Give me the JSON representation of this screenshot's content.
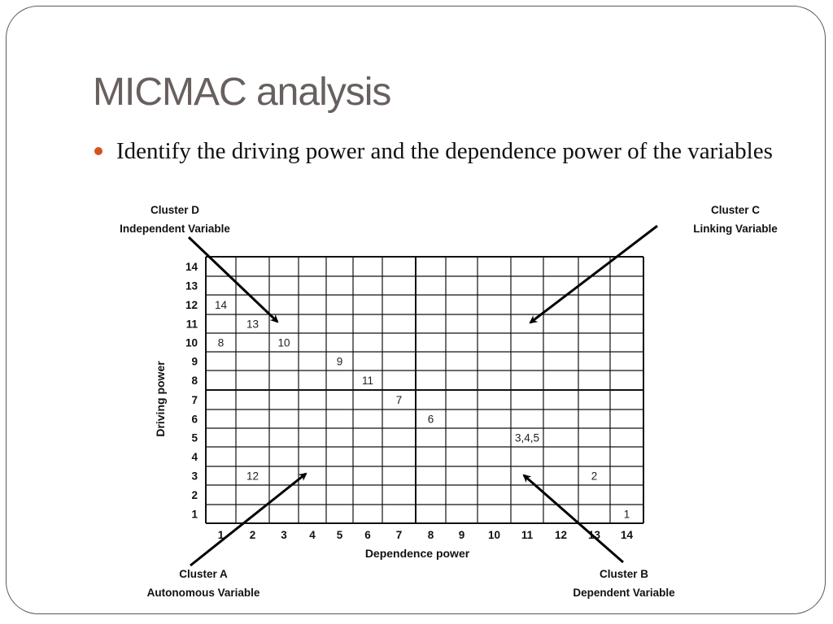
{
  "slide": {
    "title": "MICMAC analysis",
    "bullet": "Identify the driving power and the dependence power of the variables",
    "accent_color": "#d4541f",
    "title_color": "#68605e"
  },
  "clusters": {
    "D": {
      "name": "Cluster D",
      "type": "Independent Variable"
    },
    "C": {
      "name": "Cluster C",
      "type": "Linking Variable"
    },
    "A": {
      "name": "Cluster A",
      "type": "Autonomous Variable"
    },
    "B": {
      "name": "Cluster B",
      "type": "Dependent Variable"
    }
  },
  "chart_data": {
    "type": "scatter",
    "title": "MICMAC analysis",
    "xlabel": "Dependence power",
    "ylabel": "Driving power",
    "x_ticks": [
      1,
      2,
      3,
      4,
      5,
      6,
      7,
      8,
      9,
      10,
      11,
      12,
      13,
      14
    ],
    "y_ticks": [
      1,
      2,
      3,
      4,
      5,
      6,
      7,
      8,
      9,
      10,
      11,
      12,
      13,
      14
    ],
    "xlim": [
      1,
      14
    ],
    "ylim": [
      1,
      14
    ],
    "grid": true,
    "quadrant_divider": {
      "x_after": 7,
      "y_after": 7
    },
    "points": [
      {
        "label": "14",
        "dependence": 1,
        "driving": 12
      },
      {
        "label": "13",
        "dependence": 2,
        "driving": 11
      },
      {
        "label": "8",
        "dependence": 1,
        "driving": 10
      },
      {
        "label": "10",
        "dependence": 3,
        "driving": 10
      },
      {
        "label": "9",
        "dependence": 5,
        "driving": 9
      },
      {
        "label": "11",
        "dependence": 6,
        "driving": 8
      },
      {
        "label": "7",
        "dependence": 7,
        "driving": 7
      },
      {
        "label": "6",
        "dependence": 8,
        "driving": 6
      },
      {
        "label": "3,4,5",
        "dependence": 11,
        "driving": 5
      },
      {
        "label": "12",
        "dependence": 2,
        "driving": 3
      },
      {
        "label": "2",
        "dependence": 13,
        "driving": 3
      },
      {
        "label": "1",
        "dependence": 14,
        "driving": 1
      }
    ],
    "quadrants": [
      {
        "position": "top-left",
        "label": "Cluster D",
        "sublabel": "Independent Variable"
      },
      {
        "position": "top-right",
        "label": "Cluster C",
        "sublabel": "Linking Variable"
      },
      {
        "position": "bottom-left",
        "label": "Cluster A",
        "sublabel": "Autonomous Variable"
      },
      {
        "position": "bottom-right",
        "label": "Cluster B",
        "sublabel": "Dependent Variable"
      }
    ]
  }
}
